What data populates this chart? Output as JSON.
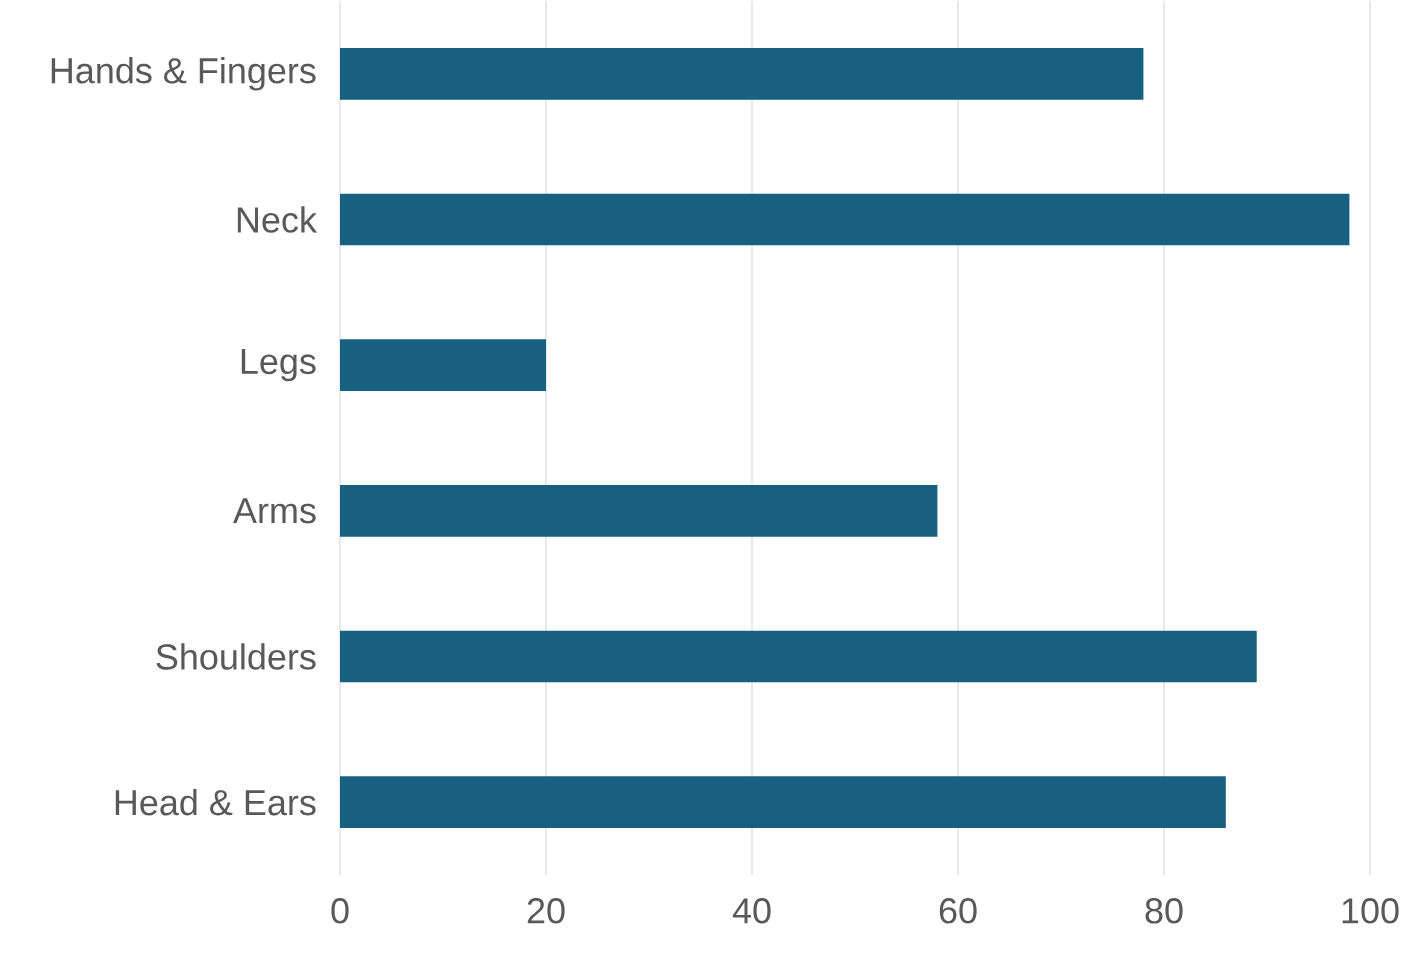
{
  "chart_data": {
    "type": "bar",
    "orientation": "horizontal",
    "categories": [
      "Hands & Fingers",
      "Neck",
      "Legs",
      "Arms",
      "Shoulders",
      "Head & Ears"
    ],
    "values": [
      78,
      98,
      20,
      58,
      89,
      86
    ],
    "color": "#17607f",
    "xlim": [
      0,
      100
    ],
    "xticks": [
      0,
      20,
      40,
      60,
      80,
      100
    ],
    "grid": "x"
  }
}
